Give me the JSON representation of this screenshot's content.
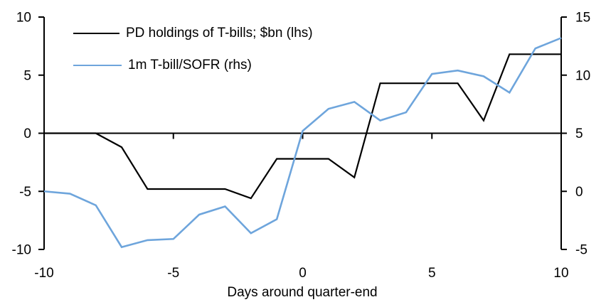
{
  "chart_data": {
    "type": "line",
    "title": "",
    "xlabel": "Days around quarter-end",
    "grid": false,
    "legend_position": "top-left-inside",
    "x": [
      -10,
      -9,
      -8,
      -7,
      -6,
      -5,
      -4,
      -3,
      -2,
      -1,
      0,
      1,
      2,
      3,
      4,
      5,
      6,
      7,
      8,
      9,
      10
    ],
    "series": [
      {
        "name": "PD holdings of T-bills; $bn (lhs)",
        "axis": "left",
        "color": "#000000",
        "values": [
          0.0,
          0.0,
          0.0,
          -1.2,
          -4.8,
          -4.8,
          -4.8,
          -4.8,
          -5.6,
          -2.2,
          -2.2,
          -2.2,
          -3.8,
          4.3,
          4.3,
          4.3,
          4.3,
          1.1,
          6.8,
          6.8,
          6.8
        ]
      },
      {
        "name": "1m T-bill/SOFR (rhs)",
        "axis": "right",
        "color": "#6EA5DC",
        "values": [
          0.0,
          -0.2,
          -1.2,
          -4.8,
          -4.2,
          -4.1,
          -2.0,
          -1.3,
          -3.6,
          -2.4,
          5.2,
          7.1,
          7.7,
          6.1,
          6.8,
          10.1,
          10.4,
          9.9,
          8.5,
          12.3,
          13.2
        ]
      }
    ],
    "left_axis": {
      "min": -10,
      "max": 10,
      "ticks": [
        10,
        5,
        0,
        -5,
        -10
      ]
    },
    "right_axis": {
      "min": -5,
      "max": 15,
      "ticks": [
        15,
        10,
        5,
        0,
        -5
      ]
    },
    "x_axis": {
      "min": -10,
      "max": 10,
      "ticks": [
        -10,
        -5,
        0,
        5,
        10
      ]
    }
  }
}
